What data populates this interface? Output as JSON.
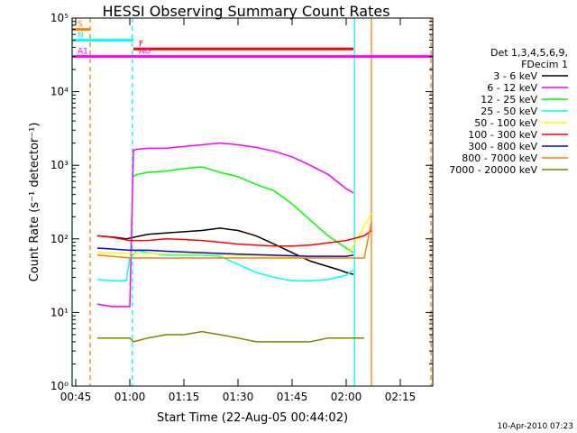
{
  "chart_data": {
    "type": "line",
    "title": "HESSI Observing Summary Count Rates",
    "xlabel": "Start Time (22-Aug-05 00:44:02)",
    "ylabel": "Count Rate (s⁻¹ detector⁻¹)",
    "ylog": true,
    "ylim": [
      1,
      100000
    ],
    "xlim_min": [
      44,
      144
    ],
    "x_ticks": [
      {
        "min": 45,
        "label": "00:45"
      },
      {
        "min": 60,
        "label": "01:00"
      },
      {
        "min": 75,
        "label": "01:15"
      },
      {
        "min": 90,
        "label": "01:30"
      },
      {
        "min": 105,
        "label": "01:45"
      },
      {
        "min": 120,
        "label": "02:00"
      },
      {
        "min": 135,
        "label": "02:15"
      }
    ],
    "y_ticks": [
      {
        "value": 1,
        "label": "10⁰"
      },
      {
        "value": 10,
        "label": "10¹"
      },
      {
        "value": 100,
        "label": "10²"
      },
      {
        "value": 1000,
        "label": "10³"
      },
      {
        "value": 10000,
        "label": "10⁴"
      },
      {
        "value": 100000,
        "label": "10⁵"
      }
    ],
    "legend_header": [
      "Det 1,3,4,5,6,9,",
      "FDecim 1"
    ],
    "legend_placement": "right",
    "series": [
      {
        "name": "3 - 6 keV",
        "color": "#000000",
        "x": [
          51,
          56,
          59,
          61,
          65,
          70,
          75,
          80,
          85,
          90,
          95,
          100,
          105,
          110,
          115,
          118,
          120,
          122
        ],
        "y": [
          110,
          105,
          100,
          105,
          115,
          120,
          125,
          130,
          140,
          130,
          110,
          85,
          65,
          50,
          42,
          38,
          35,
          33
        ]
      },
      {
        "name": "6 - 12 keV",
        "color": "#ff00ff",
        "x": [
          51,
          55,
          60,
          61,
          62,
          65,
          70,
          75,
          80,
          85,
          90,
          95,
          100,
          105,
          110,
          115,
          120,
          122
        ],
        "y": [
          13,
          12,
          12,
          1600,
          1650,
          1700,
          1700,
          1800,
          1900,
          2000,
          1900,
          1750,
          1550,
          1300,
          1000,
          750,
          480,
          420
        ]
      },
      {
        "name": "12 - 25 keV",
        "color": "#00ff00",
        "x": [
          61,
          62,
          65,
          70,
          75,
          80,
          85,
          90,
          95,
          100,
          105,
          110,
          115,
          120,
          122
        ],
        "y": [
          700,
          750,
          800,
          830,
          900,
          950,
          800,
          700,
          550,
          450,
          300,
          180,
          110,
          75,
          65
        ]
      },
      {
        "name": "25 - 50 keV",
        "color": "#00ffff",
        "x": [
          51,
          55,
          59,
          60,
          62,
          65,
          70,
          75,
          80,
          85,
          90,
          95,
          100,
          105,
          110,
          115,
          120,
          122
        ],
        "y": [
          28,
          27,
          27,
          55,
          70,
          65,
          60,
          60,
          60,
          58,
          45,
          35,
          30,
          27,
          27,
          28,
          32,
          38
        ]
      },
      {
        "name": "50 - 100 keV",
        "color": "#ffff00",
        "x": [
          51,
          60,
          70,
          80,
          90,
          100,
          110,
          120,
          127
        ],
        "y": [
          65,
          64,
          63,
          62,
          60,
          58,
          56,
          55,
          220
        ]
      },
      {
        "name": "100 - 300 keV",
        "color": "#ff0000",
        "x": [
          51,
          55,
          60,
          65,
          70,
          75,
          80,
          85,
          90,
          95,
          100,
          105,
          110,
          115,
          120,
          125,
          127
        ],
        "y": [
          110,
          105,
          95,
          95,
          100,
          98,
          95,
          90,
          85,
          82,
          80,
          80,
          82,
          88,
          95,
          110,
          130
        ]
      },
      {
        "name": "300 - 800 keV",
        "color": "#0000ff",
        "x": [
          51,
          55,
          60,
          65,
          70,
          80,
          90,
          100,
          110,
          120,
          122
        ],
        "y": [
          75,
          73,
          70,
          70,
          68,
          65,
          62,
          60,
          58,
          58,
          60
        ]
      },
      {
        "name": "800 - 7000 keV",
        "color": "#ff8000",
        "x": [
          51,
          55,
          60,
          65,
          70,
          80,
          90,
          100,
          110,
          120,
          125,
          127
        ],
        "y": [
          60,
          58,
          55,
          55,
          55,
          55,
          55,
          55,
          55,
          55,
          55,
          170
        ]
      },
      {
        "name": "7000 - 20000 keV",
        "color": "#808000",
        "x": [
          51,
          55,
          60,
          61,
          65,
          70,
          75,
          80,
          85,
          90,
          95,
          100,
          105,
          110,
          115,
          120,
          125
        ],
        "y": [
          4.5,
          4.5,
          4.5,
          4,
          4.5,
          5,
          5,
          5.5,
          5,
          4.5,
          4,
          4,
          4,
          4,
          4.5,
          4.5,
          4.5
        ]
      }
    ],
    "flag_lines": [
      {
        "label": "S",
        "color": "#ff8000",
        "x_start": 44,
        "x_end": 49,
        "level": 70000
      },
      {
        "label": "N",
        "color": "#00ffff",
        "x_start": 44,
        "x_end": 61,
        "level": 50000
      },
      {
        "label": "F",
        "color": "#ff0000",
        "x_start": 61,
        "x_end": 122,
        "level": 38000
      },
      {
        "label": "AO",
        "color": "#ff00ff",
        "x_start": 61,
        "x_end": 144,
        "level": 30000
      },
      {
        "label": "A1",
        "color": "#ff00ff",
        "x_start": 44,
        "x_end": 61,
        "level": 30000
      }
    ],
    "vertical_markers": [
      {
        "min": 44,
        "color": "#00ffff",
        "style": "solid"
      },
      {
        "min": 49,
        "color": "#ff8000",
        "style": "dashed"
      },
      {
        "min": 60.7,
        "color": "#00ffff",
        "style": "dashed"
      },
      {
        "min": 122.3,
        "color": "#00ffff",
        "style": "solid"
      },
      {
        "min": 127,
        "color": "#ff8000",
        "style": "solid"
      },
      {
        "min": 143.5,
        "color": "#ff8000",
        "style": "dashed"
      }
    ],
    "annotation_date": "10-Apr-2010 07:23"
  }
}
